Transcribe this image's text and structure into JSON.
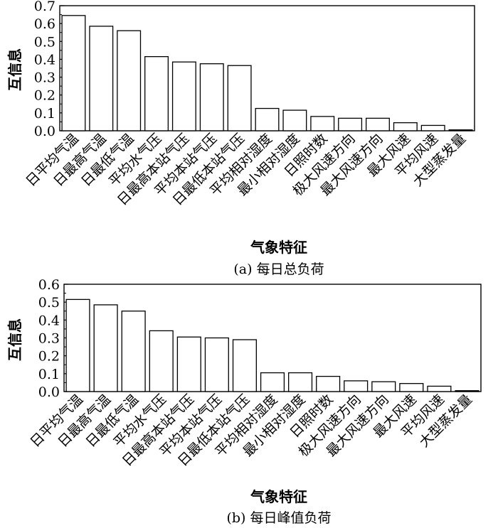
{
  "chart_data": [
    {
      "type": "bar",
      "xlabel": "气象特征",
      "ylabel": "互信息",
      "caption": "(a) 每日总负荷",
      "ylim": [
        0,
        0.7
      ],
      "yticks": [
        "0.0",
        "0.1",
        "0.2",
        "0.3",
        "0.4",
        "0.5",
        "0.6",
        "0.7"
      ],
      "categories": [
        "日平均气温",
        "日最高气温",
        "日最低气温",
        "平均水气压",
        "日最高本站气压",
        "平均本站气压",
        "日最低本站气压",
        "平均相对湿度",
        "最小相对湿度",
        "日照时数",
        "极大风速方向",
        "最大风速方向",
        "最大风速",
        "平均风速",
        "大型蒸发量"
      ],
      "values": [
        0.645,
        0.585,
        0.56,
        0.415,
        0.385,
        0.375,
        0.365,
        0.125,
        0.115,
        0.08,
        0.07,
        0.07,
        0.045,
        0.03,
        0.005
      ],
      "grid": false,
      "legend": "none"
    },
    {
      "type": "bar",
      "xlabel": "气象特征",
      "ylabel": "互信息",
      "caption": "(b) 每日峰值负荷",
      "ylim": [
        0,
        0.6
      ],
      "yticks": [
        "0.0",
        "0.1",
        "0.2",
        "0.3",
        "0.4",
        "0.5",
        "0.6"
      ],
      "categories": [
        "日平均气温",
        "日最高气温",
        "日最低气温",
        "平均水气压",
        "日最高本站气压",
        "平均本站气压",
        "日最低本站气压",
        "平均相对湿度",
        "最小相对湿度",
        "日照时数",
        "极大风速方向",
        "最大风速方向",
        "最大风速",
        "平均风速",
        "大型蒸发量"
      ],
      "values": [
        0.515,
        0.485,
        0.45,
        0.34,
        0.305,
        0.3,
        0.29,
        0.105,
        0.105,
        0.085,
        0.06,
        0.055,
        0.045,
        0.03,
        0.005
      ],
      "grid": false,
      "legend": "none"
    }
  ]
}
